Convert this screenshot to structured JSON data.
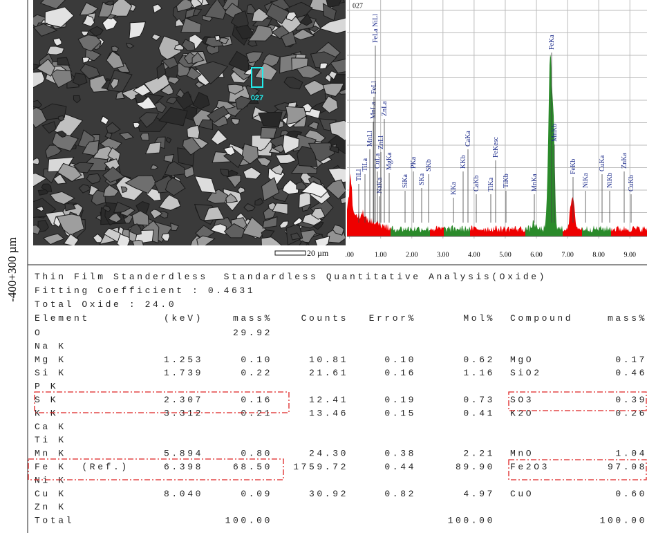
{
  "side_label": "-400+300 µm",
  "sem_image": {
    "marker_label": "027",
    "scale_label": "20 µm"
  },
  "spectrum": {
    "title": "027",
    "xlim": [
      -0.08,
      9.55
    ],
    "xticks": [
      {
        "value": 0,
        "label": ".00"
      },
      {
        "value": 1,
        "label": "1.00"
      },
      {
        "value": 2,
        "label": "2.00"
      },
      {
        "value": 3,
        "label": "3.00"
      },
      {
        "value": 4,
        "label": "4.00"
      },
      {
        "value": 5,
        "label": "5.00"
      },
      {
        "value": 6,
        "label": "6.00"
      },
      {
        "value": 7,
        "label": "7.00"
      },
      {
        "value": 8,
        "label": "8.00"
      },
      {
        "value": 9,
        "label": "9.00"
      }
    ],
    "peak_labels": [
      "TiLl",
      "TiLa",
      "MnLl",
      "NaKa",
      "CuLa",
      "MnLa",
      "ZnLl",
      "FeLl",
      "ZnLa",
      "FeLa NiLl",
      "MgKa",
      "SiKa",
      "PKa",
      "SKa",
      "SKb",
      "KKa",
      "KKb",
      "CaKa",
      "CaKb",
      "TiKa",
      "FeKesc",
      "TiKb",
      "MnKa",
      "FeKa",
      "MnKb",
      "FeKb",
      "NiKa",
      "CuKa",
      "NiKb",
      "ZnKa",
      "CuKb"
    ]
  },
  "report": {
    "lines": [
      "Thin Film Standerdless  Standardless Quantitative Analysis(Oxide)",
      "Fitting Coefficient : 0.4631",
      "Total Oxide : 24.0"
    ],
    "columns": [
      "Element",
      "(keV)",
      "mass%",
      "Counts",
      "Error%",
      "Mol%",
      "Compound",
      "mass%"
    ],
    "rows": [
      [
        "O",
        null,
        "29.92"
      ],
      [
        "Na K"
      ],
      [
        "Mg K",
        "1.253",
        "0.10",
        "10.81",
        "0.10",
        "0.62",
        "MgO",
        "0.17"
      ],
      [
        "Si K",
        "1.739",
        "0.22",
        "21.61",
        "0.16",
        "1.16",
        "SiO2",
        "0.46"
      ],
      [
        "P K"
      ],
      [
        "S K",
        "2.307",
        "0.16",
        "12.41",
        "0.19",
        "0.73",
        "SO3",
        "0.39"
      ],
      [
        "K K",
        "3.312",
        "0.21",
        "13.46",
        "0.15",
        "0.41",
        "K2O",
        "0.26"
      ],
      [
        "Ca K"
      ],
      [
        "Ti K"
      ],
      [
        "Mn K",
        "5.894",
        "0.80",
        "24.30",
        "0.38",
        "2.21",
        "MnO",
        "1.04"
      ],
      [
        "Fe K  (Ref.)",
        "6.398",
        "68.50",
        "1759.72",
        "0.44",
        "89.90",
        "Fe2O3",
        "97.08"
      ],
      [
        "Ni K"
      ],
      [
        "Cu K",
        "8.040",
        "0.09",
        "30.92",
        "0.82",
        "4.97",
        "CuO",
        "0.60"
      ],
      [
        "Zn K"
      ],
      [
        "Total",
        null,
        "100.00",
        null,
        null,
        "100.00",
        null,
        "100.00"
      ]
    ]
  }
}
